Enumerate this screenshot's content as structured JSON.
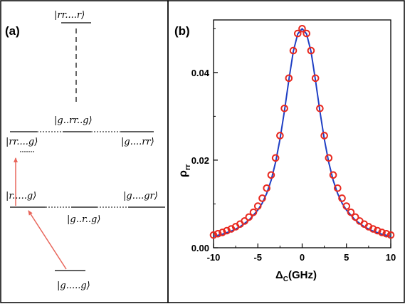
{
  "panel_a": {
    "label": "(a)",
    "states": {
      "all_r": "|rr....r⟩",
      "g_rr_g": "|g..rr..g⟩",
      "rr_g": "|rr....g⟩",
      "g_rr": "|g....rr⟩",
      "r_g": "|r.....g⟩",
      "g_r_g": "|g..r..g⟩",
      "g_gr": "|g....gr⟩",
      "ground": "|g.....g⟩"
    }
  },
  "panel_b": {
    "label": "(b)",
    "ylabel_main": "ρ",
    "ylabel_sub": "rr",
    "xlabel_main": "Δ",
    "xlabel_sub": "C",
    "xlabel_unit": "(GHz)",
    "colors": {
      "points": "#e8281e",
      "line": "#1f3fc4",
      "arrow": "#e8655a"
    }
  },
  "chart_data": {
    "type": "scatter",
    "x_tick_labels": [
      "-10",
      "-5",
      "0",
      "5",
      "10"
    ],
    "y_tick_labels": [
      "0.00",
      "0.02",
      "0.04"
    ],
    "xlim": [
      -10,
      10
    ],
    "ylim": [
      0,
      0.052
    ],
    "xlabel": "ΔC(GHz)",
    "ylabel": "ρrr",
    "grid": false,
    "series": [
      {
        "style": "markers",
        "marker": "open-circle",
        "x": [
          -10,
          -9.5,
          -9,
          -8.5,
          -8,
          -7.5,
          -7,
          -6.5,
          -6,
          -5.5,
          -5,
          -4.5,
          -4,
          -3.5,
          -3,
          -2.5,
          -2,
          -1.5,
          -1,
          -0.5,
          0,
          0.5,
          1,
          1.5,
          2,
          2.5,
          3,
          3.5,
          4,
          4.5,
          5,
          5.5,
          6,
          6.5,
          7,
          7.5,
          8,
          8.5,
          9,
          9.5,
          10
        ],
        "y": [
          0.0029,
          0.0032,
          0.0035,
          0.0039,
          0.0043,
          0.0048,
          0.0054,
          0.0061,
          0.007,
          0.0081,
          0.0095,
          0.0113,
          0.0136,
          0.0166,
          0.0205,
          0.0256,
          0.0318,
          0.0387,
          0.045,
          0.0489,
          0.05,
          0.0489,
          0.045,
          0.0387,
          0.0318,
          0.0256,
          0.0205,
          0.0166,
          0.0136,
          0.0113,
          0.0095,
          0.0081,
          0.007,
          0.0061,
          0.0054,
          0.0048,
          0.0043,
          0.0039,
          0.0035,
          0.0032,
          0.0029
        ]
      },
      {
        "style": "line",
        "x": [
          -10,
          -9,
          -8,
          -7,
          -6,
          -5,
          -4.5,
          -4,
          -3.5,
          -3,
          -2.5,
          -2,
          -1.5,
          -1,
          -0.5,
          0,
          0.5,
          1,
          1.5,
          2,
          2.5,
          3,
          3.5,
          4,
          4.5,
          5,
          6,
          7,
          8,
          9,
          10
        ],
        "y": [
          0.0026,
          0.0031,
          0.0038,
          0.0048,
          0.0063,
          0.0086,
          0.0102,
          0.0124,
          0.0154,
          0.0195,
          0.0248,
          0.0312,
          0.0383,
          0.0448,
          0.0488,
          0.05,
          0.0488,
          0.0448,
          0.0383,
          0.0312,
          0.0248,
          0.0195,
          0.0154,
          0.0124,
          0.0102,
          0.0086,
          0.0063,
          0.0048,
          0.0038,
          0.0031,
          0.0026
        ]
      }
    ]
  }
}
